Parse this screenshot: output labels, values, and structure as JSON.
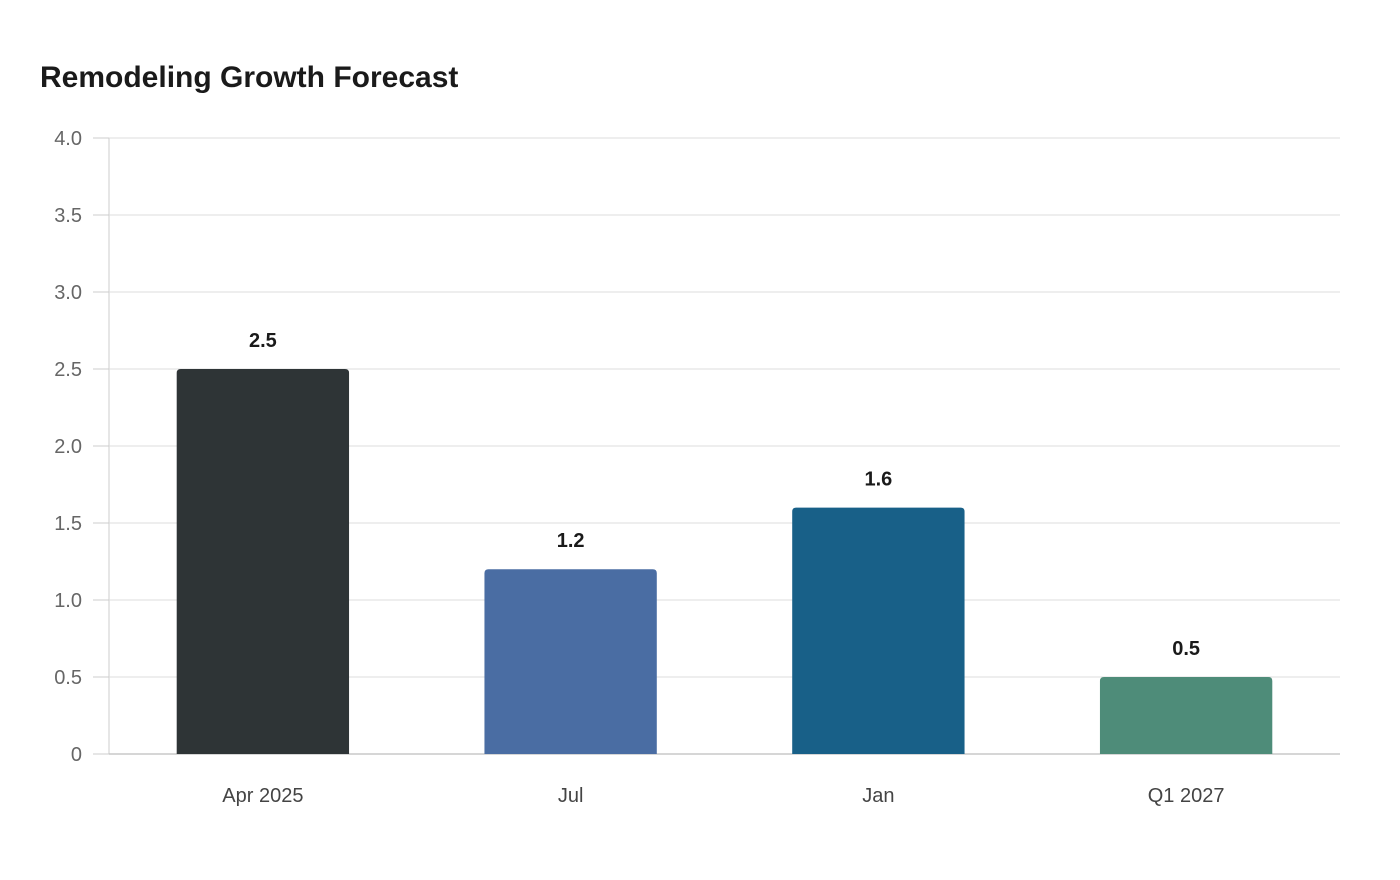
{
  "chart_data": {
    "type": "bar",
    "title": "Remodeling Growth Forecast",
    "xlabel": "",
    "ylabel": "",
    "categories": [
      "Apr 2025",
      "Jul",
      "Jan",
      "Q1 2027"
    ],
    "values": [
      2.5,
      1.2,
      1.6,
      0.5
    ],
    "data_labels": [
      "2.5",
      "1.2",
      "1.6",
      "0.5"
    ],
    "bar_colors": [
      "#2e3436",
      "#4a6da3",
      "#186088",
      "#4e8c79"
    ],
    "ylim": [
      0,
      4.0
    ],
    "yticks": [
      0,
      0.5,
      1.0,
      1.5,
      2.0,
      2.5,
      3.0,
      3.5,
      4.0
    ],
    "ytick_labels": [
      "0",
      "0.5",
      "1.0",
      "1.5",
      "2.0",
      "2.5",
      "3.0",
      "3.5",
      "4.0"
    ],
    "grid": true,
    "legend": "none"
  }
}
